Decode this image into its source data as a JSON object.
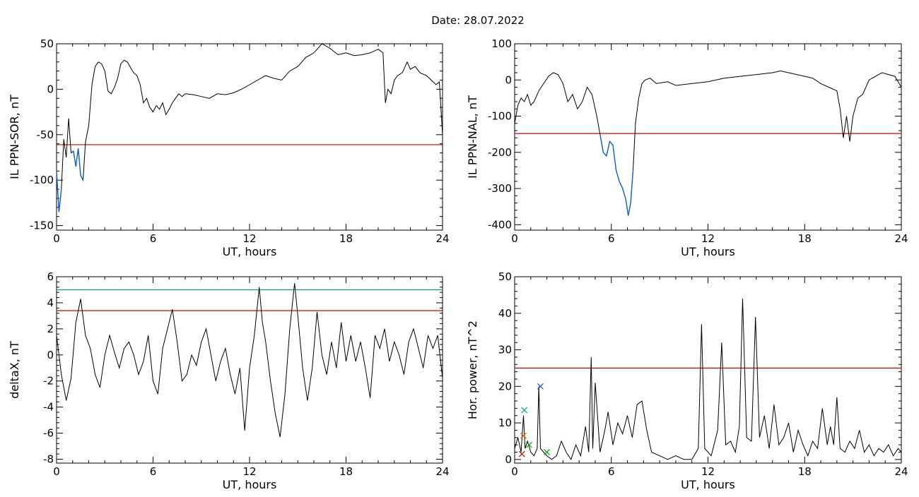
{
  "title": "Date:  28.07.2022",
  "colors": {
    "threshold": "#d40000",
    "threshold2": "#009090",
    "curve": "#000000",
    "highlight": "#1060e0"
  },
  "chart_data": [
    {
      "type": "line",
      "xlabel": "UT, hours",
      "ylabel": "IL PPN-SOR, nT",
      "xlim": [
        0,
        24
      ],
      "ylim": [
        -155,
        50
      ],
      "xticks": [
        0,
        6,
        12,
        18,
        24
      ],
      "yticks": [
        50,
        0,
        -50,
        -100,
        -150
      ],
      "threshold": -61,
      "highlight_below_threshold": true,
      "x": [
        0,
        0.15,
        0.3,
        0.45,
        0.6,
        0.75,
        0.9,
        1.05,
        1.2,
        1.35,
        1.5,
        1.65,
        1.8,
        2.0,
        2.2,
        2.4,
        2.6,
        2.8,
        3.0,
        3.2,
        3.4,
        3.6,
        3.8,
        4.0,
        4.2,
        4.4,
        4.6,
        4.8,
        5.0,
        5.2,
        5.4,
        5.6,
        5.8,
        6.0,
        6.2,
        6.4,
        6.6,
        6.8,
        7.0,
        7.2,
        7.4,
        7.6,
        7.8,
        8.0,
        8.5,
        9.0,
        9.5,
        10.0,
        10.5,
        11.0,
        11.5,
        12.0,
        12.5,
        13.0,
        13.5,
        14.0,
        14.5,
        15.0,
        15.5,
        16.0,
        16.5,
        17.0,
        17.5,
        18.0,
        18.5,
        19.0,
        19.5,
        20.0,
        20.3,
        20.45,
        20.6,
        20.8,
        21.0,
        21.2,
        21.5,
        21.8,
        22.0,
        22.3,
        22.6,
        23.0,
        23.3,
        23.6,
        23.8,
        24.0
      ],
      "y": [
        -90,
        -135,
        -110,
        -55,
        -75,
        -32,
        -70,
        -68,
        -85,
        -65,
        -95,
        -100,
        -58,
        -40,
        5,
        25,
        30,
        28,
        20,
        -2,
        -5,
        2,
        12,
        28,
        32,
        30,
        24,
        18,
        15,
        5,
        -15,
        -10,
        -20,
        -25,
        -18,
        -22,
        -15,
        -28,
        -22,
        -15,
        -10,
        -5,
        -8,
        -5,
        -6,
        -8,
        -10,
        -5,
        -6,
        -4,
        0,
        5,
        10,
        15,
        12,
        10,
        20,
        25,
        35,
        40,
        50,
        45,
        38,
        40,
        37,
        38,
        40,
        44,
        40,
        -15,
        0,
        -5,
        10,
        15,
        18,
        30,
        22,
        25,
        18,
        15,
        10,
        5,
        8,
        -50
      ]
    },
    {
      "type": "line",
      "xlabel": "UT, hours",
      "ylabel": "IL PPN-NAL, nT",
      "xlim": [
        0,
        24
      ],
      "ylim": [
        -415,
        100
      ],
      "xticks": [
        0,
        6,
        12,
        18,
        24
      ],
      "yticks": [
        100,
        0,
        -100,
        -200,
        -300,
        -400
      ],
      "threshold": -148,
      "highlight_below_threshold": true,
      "x": [
        0,
        0.2,
        0.4,
        0.6,
        0.8,
        1.0,
        1.2,
        1.5,
        1.8,
        2.1,
        2.4,
        2.7,
        3.0,
        3.3,
        3.6,
        3.9,
        4.2,
        4.5,
        4.8,
        5.1,
        5.3,
        5.5,
        5.7,
        5.9,
        6.1,
        6.3,
        6.5,
        6.7,
        6.9,
        7.05,
        7.2,
        7.35,
        7.5,
        7.7,
        7.9,
        8.1,
        8.4,
        8.8,
        9.5,
        10.0,
        11.0,
        12.0,
        13.0,
        14.0,
        15.0,
        16.0,
        16.5,
        17.0,
        17.5,
        18.0,
        18.5,
        19.0,
        19.5,
        20.0,
        20.2,
        20.4,
        20.6,
        20.8,
        21.0,
        21.3,
        21.6,
        22.0,
        22.4,
        22.8,
        23.2,
        23.6,
        24.0
      ],
      "y": [
        -120,
        -70,
        -50,
        -60,
        -40,
        -70,
        -60,
        -30,
        -10,
        10,
        20,
        15,
        -10,
        -60,
        -40,
        -80,
        -60,
        -20,
        -40,
        -100,
        -150,
        -200,
        -210,
        -170,
        -180,
        -250,
        -280,
        -300,
        -330,
        -375,
        -340,
        -250,
        -120,
        -50,
        -10,
        0,
        5,
        -10,
        -5,
        -15,
        -10,
        -5,
        5,
        10,
        15,
        20,
        25,
        20,
        15,
        10,
        5,
        -10,
        -20,
        -30,
        -80,
        -160,
        -100,
        -170,
        -100,
        -50,
        -40,
        0,
        10,
        20,
        15,
        10,
        -20
      ]
    },
    {
      "type": "line",
      "xlabel": "UT, hours",
      "ylabel": "deltaX, nT",
      "xlim": [
        0,
        24
      ],
      "ylim": [
        -8.3,
        6.0
      ],
      "xticks": [
        0,
        6,
        12,
        18,
        24
      ],
      "yticks": [
        6,
        4,
        2,
        0,
        -2,
        -4,
        -6,
        -8
      ],
      "threshold": 3.4,
      "threshold2": 5.0,
      "x": [
        0,
        0.3,
        0.6,
        0.9,
        1.2,
        1.5,
        1.8,
        2.1,
        2.4,
        2.7,
        3.0,
        3.3,
        3.6,
        3.9,
        4.2,
        4.5,
        4.8,
        5.1,
        5.4,
        5.7,
        6.0,
        6.3,
        6.6,
        6.9,
        7.2,
        7.5,
        7.8,
        8.1,
        8.4,
        8.7,
        9.0,
        9.3,
        9.6,
        9.9,
        10.2,
        10.5,
        10.8,
        11.1,
        11.4,
        11.7,
        12.0,
        12.3,
        12.6,
        12.8,
        13.0,
        13.3,
        13.6,
        13.9,
        14.2,
        14.5,
        14.8,
        15.0,
        15.3,
        15.6,
        15.9,
        16.2,
        16.5,
        16.8,
        17.1,
        17.4,
        17.7,
        18.0,
        18.3,
        18.6,
        18.9,
        19.2,
        19.5,
        19.8,
        20.1,
        20.4,
        20.7,
        21.0,
        21.3,
        21.6,
        21.9,
        22.2,
        22.5,
        22.8,
        23.1,
        23.4,
        23.7,
        24.0
      ],
      "y": [
        1.5,
        -1.5,
        -3.5,
        -1.8,
        2.5,
        4.3,
        1.5,
        0.5,
        -1.5,
        -2.5,
        0.0,
        1.5,
        0.2,
        -1.0,
        0.5,
        1.0,
        0.0,
        -1.5,
        -0.5,
        1.5,
        -2.0,
        -3.0,
        0.5,
        2.0,
        3.5,
        1.0,
        -2.0,
        -1.5,
        0.0,
        -0.8,
        1.0,
        2.0,
        0.0,
        -2.0,
        -0.5,
        0.5,
        -1.5,
        -3.0,
        -1.0,
        -5.8,
        -1.0,
        1.5,
        5.2,
        2.5,
        1.0,
        -2.0,
        -4.5,
        -6.3,
        -3.0,
        2.0,
        5.5,
        3.0,
        -1.0,
        -3.5,
        -1.0,
        3.3,
        0.0,
        -1.5,
        1.0,
        -1.0,
        2.5,
        -0.5,
        1.5,
        -0.5,
        1.0,
        -1.0,
        -3.3,
        1.5,
        0.5,
        2.0,
        -0.5,
        1.0,
        0.0,
        -1.5,
        1.0,
        2.0,
        0.5,
        -1.0,
        1.5,
        0.5,
        1.5,
        -1.8
      ]
    },
    {
      "type": "line",
      "xlabel": "UT, hours",
      "ylabel": "Hor. power, nT^2",
      "xlim": [
        0,
        24
      ],
      "ylim": [
        -1,
        50
      ],
      "xticks": [
        0,
        6,
        12,
        18,
        24
      ],
      "yticks": [
        50,
        40,
        30,
        20,
        10,
        0
      ],
      "threshold": 25,
      "x": [
        0,
        0.2,
        0.4,
        0.55,
        0.65,
        0.8,
        1.0,
        1.2,
        1.4,
        1.5,
        1.6,
        1.8,
        2.0,
        2.3,
        2.6,
        2.9,
        3.2,
        3.5,
        3.8,
        4.1,
        4.4,
        4.6,
        4.75,
        4.85,
        5.0,
        5.3,
        5.6,
        5.8,
        6.1,
        6.4,
        6.7,
        7.0,
        7.3,
        7.6,
        7.9,
        8.2,
        8.5,
        9.0,
        9.5,
        10.0,
        10.5,
        11.0,
        11.4,
        11.6,
        11.8,
        12.2,
        12.6,
        12.85,
        13.1,
        13.4,
        13.7,
        13.95,
        14.15,
        14.4,
        14.7,
        14.95,
        15.2,
        15.5,
        15.8,
        16.1,
        16.4,
        16.7,
        17.0,
        17.3,
        17.6,
        17.9,
        18.2,
        18.5,
        18.8,
        19.1,
        19.4,
        19.6,
        19.8,
        20.0,
        20.2,
        20.5,
        20.8,
        21.1,
        21.4,
        21.7,
        22.0,
        22.3,
        22.6,
        22.9,
        23.2,
        23.5,
        23.8,
        24.0
      ],
      "y": [
        3,
        6,
        2,
        12,
        3,
        5,
        2,
        1,
        3,
        20,
        3,
        2,
        1,
        0,
        1,
        5,
        2,
        0,
        4,
        1,
        9,
        2,
        28,
        3,
        21,
        2,
        8,
        13,
        4,
        10,
        7,
        12,
        6,
        15,
        16,
        8,
        2,
        1,
        0,
        1,
        0,
        0,
        3,
        37,
        3,
        1,
        8,
        32,
        4,
        5,
        2,
        9,
        44,
        6,
        5,
        39,
        6,
        12,
        3,
        15,
        4,
        6,
        10,
        2,
        8,
        4,
        1,
        5,
        3,
        14,
        4,
        9,
        4,
        17,
        3,
        2,
        5,
        3,
        8,
        2,
        4,
        1,
        3,
        2,
        4,
        1,
        3,
        2
      ],
      "markers": [
        {
          "x": 0.6,
          "y": 13.5,
          "symbol": "x",
          "color": "#00a0a0"
        },
        {
          "x": 1.6,
          "y": 20,
          "symbol": "x",
          "color": "#2050d0"
        },
        {
          "x": 0.55,
          "y": 6.5,
          "symbol": "x",
          "color": "#e06000"
        },
        {
          "x": 0.45,
          "y": 1.5,
          "symbol": "x",
          "color": "#d00000"
        },
        {
          "x": 0.9,
          "y": 4,
          "symbol": "x",
          "color": "#00a000"
        },
        {
          "x": 2.0,
          "y": 2,
          "symbol": "x",
          "color": "#00a000"
        }
      ]
    }
  ]
}
